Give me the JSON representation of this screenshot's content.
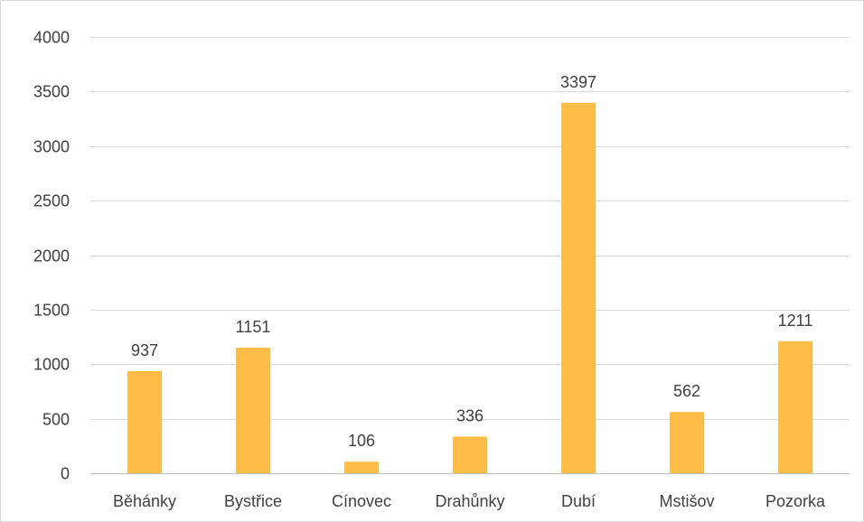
{
  "chart_data": {
    "type": "bar",
    "title": "",
    "xlabel": "",
    "ylabel": "",
    "categories": [
      "Běhánky",
      "Bystřice",
      "Cínovec",
      "Drahůnky",
      "Dubí",
      "Mstišov",
      "Pozorka"
    ],
    "values": [
      937,
      1151,
      106,
      336,
      3397,
      562,
      1211
    ],
    "ylim": [
      0,
      4000
    ],
    "yticks": [
      0,
      500,
      1000,
      1500,
      2000,
      2500,
      3000,
      3500,
      4000
    ],
    "grid": true,
    "legend": "none",
    "data_labels": true,
    "bar_color": "#FFBC47"
  }
}
